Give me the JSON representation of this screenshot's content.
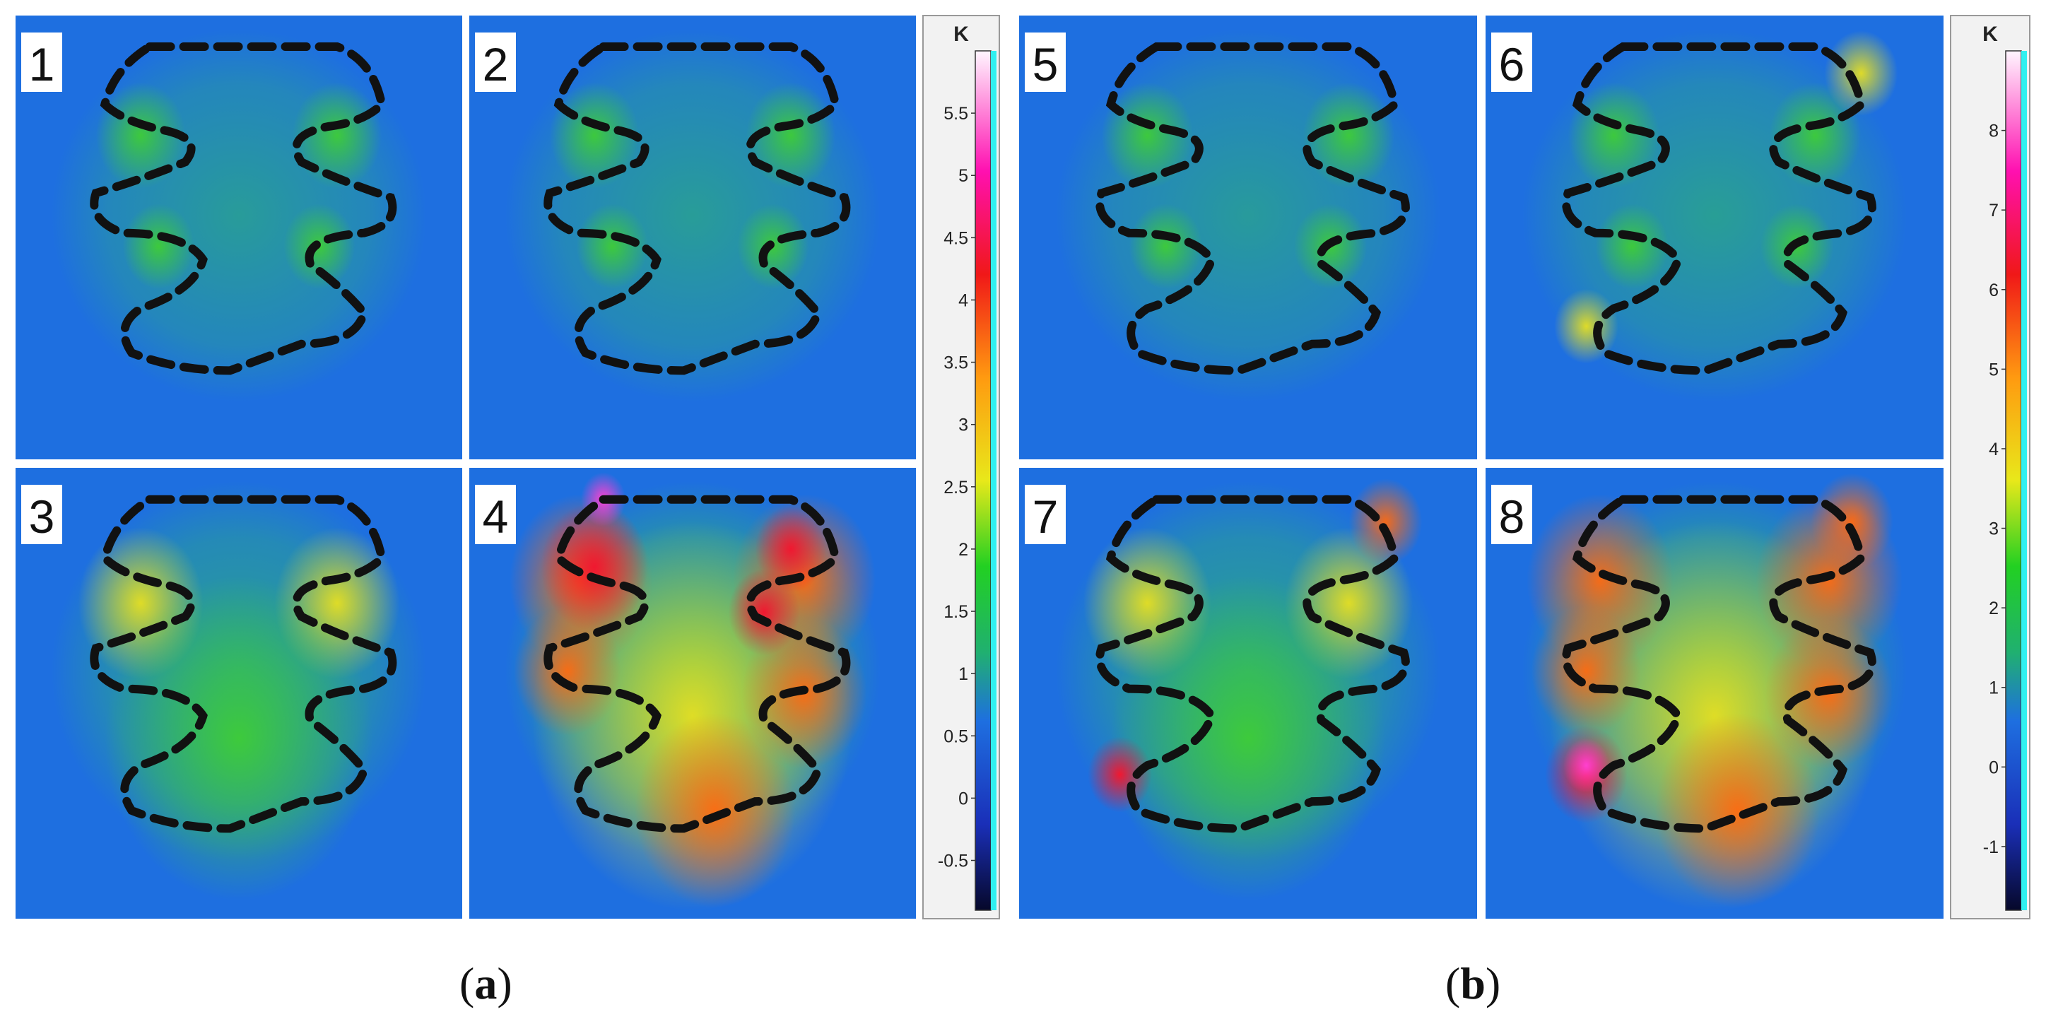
{
  "figure": {
    "panels": [
      {
        "id": "a",
        "label_open": "(",
        "label_letter": "a",
        "label_close": ")",
        "frames": [
          {
            "label": "1",
            "intensity": 0.22
          },
          {
            "label": "2",
            "intensity": 0.25
          },
          {
            "label": "3",
            "intensity": 0.42
          },
          {
            "label": "4",
            "intensity": 0.85
          }
        ],
        "colorbar": {
          "unit": "K",
          "range": [
            -0.9,
            6.0
          ],
          "ticks": [
            "5.5",
            "5",
            "4.5",
            "4",
            "3.5",
            "3",
            "2.5",
            "2",
            "1.5",
            "1",
            "0.5",
            "0",
            "-0.5"
          ],
          "tick_values": [
            5.5,
            5,
            4.5,
            4,
            3.5,
            3,
            2.5,
            2,
            1.5,
            1,
            0.5,
            0,
            -0.5
          ]
        }
      },
      {
        "id": "b",
        "label_open": "(",
        "label_letter": "b",
        "label_close": ")",
        "frames": [
          {
            "label": "5",
            "intensity": 0.18
          },
          {
            "label": "6",
            "intensity": 0.3
          },
          {
            "label": "7",
            "intensity": 0.5
          },
          {
            "label": "8",
            "intensity": 0.7
          }
        ],
        "colorbar": {
          "unit": "K",
          "range": [
            -1.8,
            9.0
          ],
          "ticks": [
            "8",
            "7",
            "6",
            "5",
            "4",
            "3",
            "2",
            "1",
            "0",
            "-1"
          ],
          "tick_values": [
            8,
            7,
            6,
            5,
            4,
            3,
            2,
            1,
            0,
            -1
          ]
        }
      }
    ],
    "colors": {
      "background": "#1e6fe0",
      "contour": "#111111",
      "label_box": "#ffffff",
      "separator": "#ffffff"
    },
    "colormap": [
      "#06082a",
      "#1a2fb8",
      "#1e6fe0",
      "#20b070",
      "#22d022",
      "#e8e81a",
      "#ff9a10",
      "#f01818",
      "#ff10b0",
      "#fff6ff"
    ]
  }
}
